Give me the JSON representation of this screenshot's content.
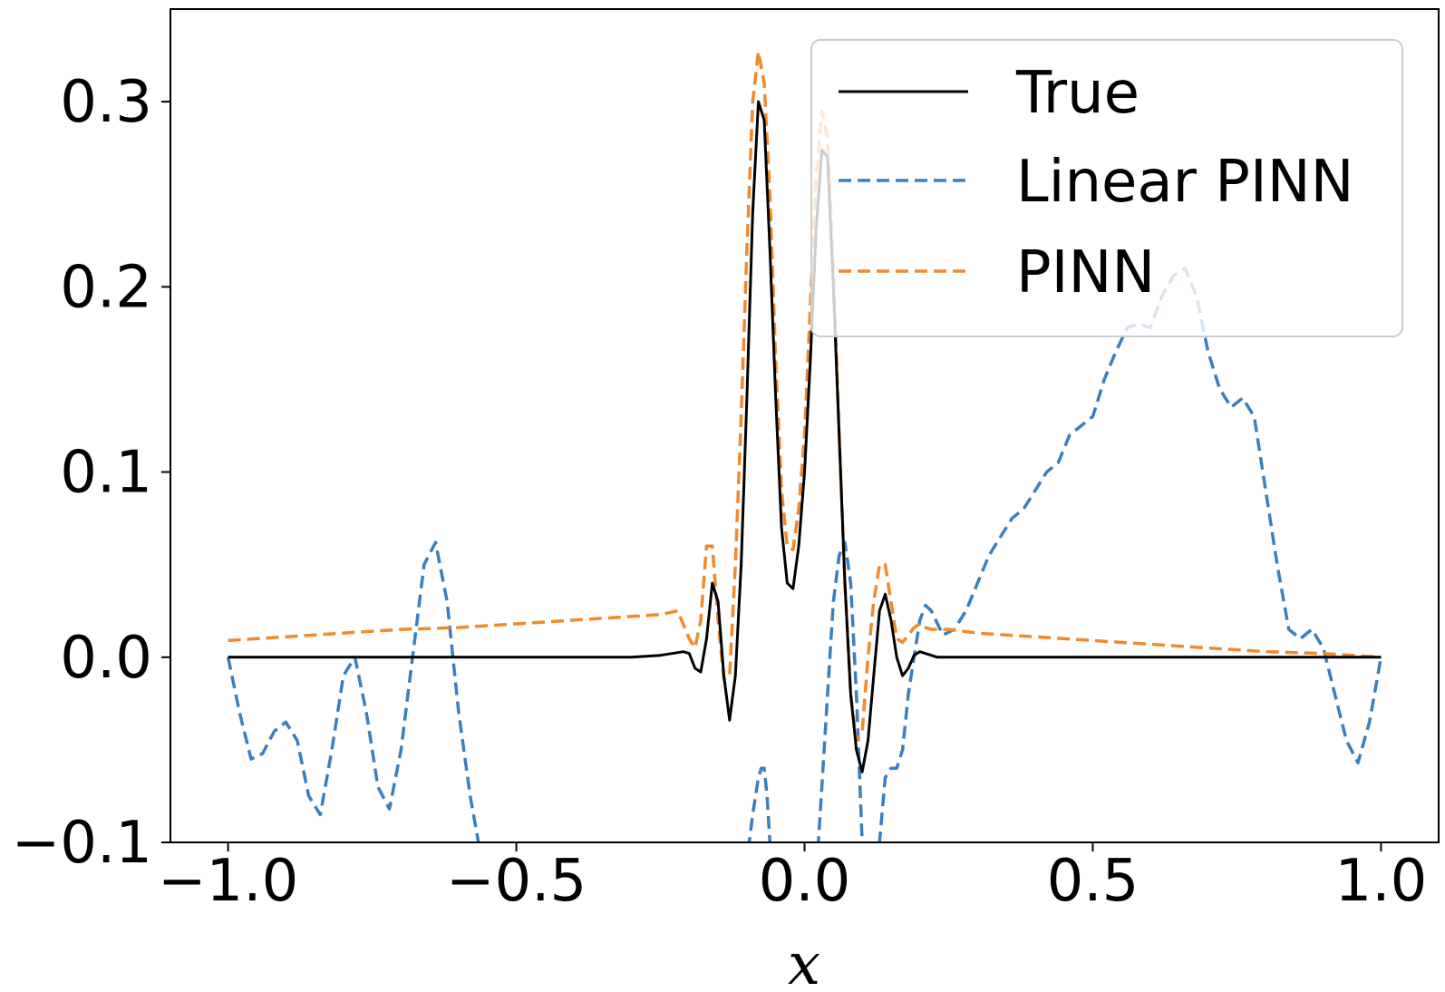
{
  "chart_data": {
    "type": "line",
    "title": "",
    "xlabel": "x",
    "ylabel": "",
    "xlim": [
      -1.1,
      1.1
    ],
    "ylim": [
      -0.1,
      0.35
    ],
    "x_ticks": [
      -1.0,
      -0.5,
      0.0,
      0.5,
      1.0
    ],
    "x_tick_labels": [
      "−1.0",
      "−0.5",
      "0.0",
      "0.5",
      "1.0"
    ],
    "y_ticks": [
      -0.1,
      0.0,
      0.1,
      0.2,
      0.3
    ],
    "y_tick_labels": [
      "−0.1",
      "0.0",
      "0.1",
      "0.2",
      "0.3"
    ],
    "grid": false,
    "legend_position": "top-right",
    "series": [
      {
        "name": "True",
        "color": "#000000",
        "dash": "solid",
        "x": [
          -1.0,
          -0.5,
          -0.3,
          -0.25,
          -0.23,
          -0.21,
          -0.2,
          -0.19,
          -0.18,
          -0.17,
          -0.16,
          -0.15,
          -0.14,
          -0.13,
          -0.12,
          -0.11,
          -0.1,
          -0.09,
          -0.08,
          -0.07,
          -0.06,
          -0.05,
          -0.04,
          -0.03,
          -0.02,
          -0.01,
          0.0,
          0.01,
          0.02,
          0.03,
          0.04,
          0.05,
          0.06,
          0.07,
          0.08,
          0.09,
          0.1,
          0.11,
          0.12,
          0.13,
          0.14,
          0.15,
          0.16,
          0.17,
          0.18,
          0.19,
          0.2,
          0.21,
          0.22,
          0.23,
          0.25,
          0.3,
          0.5,
          1.0
        ],
        "y": [
          0.0,
          0.0,
          0.0,
          0.001,
          0.002,
          0.003,
          0.002,
          -0.006,
          -0.008,
          0.01,
          0.04,
          0.03,
          -0.01,
          -0.034,
          -0.01,
          0.05,
          0.14,
          0.24,
          0.3,
          0.29,
          0.22,
          0.14,
          0.07,
          0.04,
          0.037,
          0.06,
          0.1,
          0.16,
          0.23,
          0.274,
          0.27,
          0.2,
          0.12,
          0.04,
          -0.02,
          -0.05,
          -0.062,
          -0.045,
          -0.01,
          0.025,
          0.034,
          0.02,
          0.0,
          -0.01,
          -0.006,
          0.001,
          0.003,
          0.002,
          0.001,
          0.0,
          0.0,
          0.0,
          0.0,
          0.0
        ]
      },
      {
        "name": "Linear PINN",
        "color": "#3a7fbf",
        "dash": "dashed",
        "x": [
          -1.0,
          -0.98,
          -0.96,
          -0.94,
          -0.92,
          -0.9,
          -0.88,
          -0.86,
          -0.84,
          -0.82,
          -0.8,
          -0.78,
          -0.76,
          -0.74,
          -0.72,
          -0.7,
          -0.68,
          -0.66,
          -0.64,
          -0.62,
          -0.6,
          -0.58,
          -0.56,
          -0.1,
          -0.09,
          -0.08,
          -0.075,
          -0.07,
          -0.065,
          -0.06,
          -0.05,
          -0.04,
          0.0,
          0.02,
          0.03,
          0.04,
          0.05,
          0.06,
          0.07,
          0.08,
          0.09,
          0.1,
          0.11,
          0.12,
          0.13,
          0.14,
          0.15,
          0.16,
          0.17,
          0.18,
          0.19,
          0.2,
          0.21,
          0.22,
          0.24,
          0.26,
          0.28,
          0.3,
          0.32,
          0.34,
          0.36,
          0.38,
          0.4,
          0.42,
          0.44,
          0.46,
          0.48,
          0.5,
          0.52,
          0.54,
          0.56,
          0.58,
          0.6,
          0.62,
          0.64,
          0.66,
          0.68,
          0.7,
          0.72,
          0.74,
          0.76,
          0.78,
          0.8,
          0.82,
          0.84,
          0.86,
          0.88,
          0.9,
          0.92,
          0.94,
          0.96,
          0.98,
          1.0
        ],
        "y": [
          0.0,
          -0.03,
          -0.055,
          -0.052,
          -0.04,
          -0.035,
          -0.045,
          -0.075,
          -0.085,
          -0.05,
          -0.01,
          0.0,
          -0.03,
          -0.07,
          -0.082,
          -0.05,
          0.0,
          0.05,
          0.062,
          0.03,
          -0.03,
          -0.075,
          -0.11,
          -0.11,
          -0.085,
          -0.065,
          -0.06,
          -0.06,
          -0.075,
          -0.1,
          -0.13,
          -0.16,
          -0.16,
          -0.12,
          -0.07,
          -0.02,
          0.03,
          0.055,
          0.062,
          0.04,
          -0.02,
          -0.1,
          -0.14,
          -0.14,
          -0.1,
          -0.065,
          -0.06,
          -0.06,
          -0.05,
          -0.02,
          0.0,
          0.02,
          0.028,
          0.025,
          0.012,
          0.015,
          0.025,
          0.04,
          0.055,
          0.065,
          0.075,
          0.08,
          0.09,
          0.1,
          0.105,
          0.12,
          0.125,
          0.13,
          0.15,
          0.165,
          0.178,
          0.18,
          0.178,
          0.195,
          0.206,
          0.21,
          0.195,
          0.165,
          0.145,
          0.135,
          0.14,
          0.13,
          0.09,
          0.05,
          0.015,
          0.01,
          0.015,
          0.005,
          -0.02,
          -0.045,
          -0.057,
          -0.035,
          0.0
        ]
      },
      {
        "name": "PINN",
        "color": "#ef8a2d",
        "dash": "dashed",
        "x": [
          -1.0,
          -0.9,
          -0.8,
          -0.7,
          -0.6,
          -0.5,
          -0.4,
          -0.3,
          -0.25,
          -0.22,
          -0.2,
          -0.19,
          -0.18,
          -0.17,
          -0.16,
          -0.15,
          -0.14,
          -0.13,
          -0.12,
          -0.11,
          -0.1,
          -0.09,
          -0.08,
          -0.07,
          -0.06,
          -0.05,
          -0.04,
          -0.03,
          -0.02,
          -0.01,
          0.0,
          0.01,
          0.02,
          0.03,
          0.04,
          0.05,
          0.06,
          0.07,
          0.08,
          0.09,
          0.1,
          0.11,
          0.12,
          0.13,
          0.14,
          0.15,
          0.16,
          0.17,
          0.18,
          0.19,
          0.2,
          0.21,
          0.22,
          0.25,
          0.3,
          0.4,
          0.5,
          0.6,
          0.7,
          0.8,
          0.9,
          1.0
        ],
        "y": [
          0.009,
          0.011,
          0.013,
          0.015,
          0.016,
          0.018,
          0.02,
          0.022,
          0.023,
          0.025,
          0.01,
          0.005,
          0.02,
          0.06,
          0.06,
          0.02,
          -0.012,
          -0.01,
          0.05,
          0.13,
          0.22,
          0.3,
          0.327,
          0.31,
          0.25,
          0.16,
          0.09,
          0.06,
          0.058,
          0.08,
          0.12,
          0.19,
          0.26,
          0.295,
          0.28,
          0.21,
          0.12,
          0.04,
          -0.02,
          -0.045,
          -0.04,
          0.0,
          0.03,
          0.05,
          0.05,
          0.03,
          0.01,
          0.008,
          0.012,
          0.016,
          0.018,
          0.016,
          0.015,
          0.015,
          0.013,
          0.011,
          0.009,
          0.007,
          0.005,
          0.003,
          0.002,
          0.0
        ]
      }
    ]
  }
}
